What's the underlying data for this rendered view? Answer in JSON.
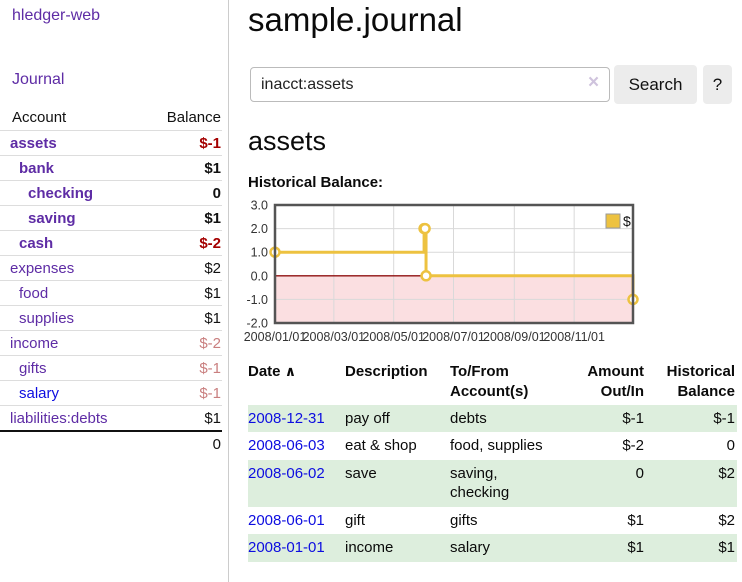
{
  "colors": {
    "purple": "#5e2ca5",
    "blue": "#0d0de0",
    "neg": "#a40000",
    "neg_soft": "#c97f7f",
    "stripe": "#ddeedd",
    "grid": "#d9d9d9",
    "zero_line": "#8f1010",
    "chart_border": "#545454",
    "chart_negative_fill": "#fbdfe1",
    "button_bg": "#ececec"
  },
  "sidebar": {
    "brand": "hledger-web",
    "journal_link": "Journal",
    "accounts_table": {
      "header_account": "Account",
      "header_balance": "Balance",
      "rows": [
        {
          "account": "assets",
          "depth": 0,
          "bold": true,
          "balance": "$-1",
          "balance_class": "neg-strong"
        },
        {
          "account": "bank",
          "depth": 1,
          "bold": true,
          "balance": "$1",
          "balance_class": ""
        },
        {
          "account": "checking",
          "depth": 2,
          "bold": true,
          "balance": "0",
          "balance_class": ""
        },
        {
          "account": "saving",
          "depth": 2,
          "bold": true,
          "balance": "$1",
          "balance_class": ""
        },
        {
          "account": "cash",
          "depth": 1,
          "bold": true,
          "balance": "$-2",
          "balance_class": "neg-strong"
        },
        {
          "account": "expenses",
          "depth": 0,
          "bold": false,
          "balance": "$2",
          "balance_class": ""
        },
        {
          "account": "food",
          "depth": 1,
          "bold": false,
          "balance": "$1",
          "balance_class": ""
        },
        {
          "account": "supplies",
          "depth": 1,
          "bold": false,
          "balance": "$1",
          "balance_class": ""
        },
        {
          "account": "income",
          "depth": 0,
          "bold": false,
          "balance": "$-2",
          "balance_class": "neg-soft"
        },
        {
          "account": "gifts",
          "depth": 1,
          "bold": false,
          "balance": "$-1",
          "balance_class": "neg-soft"
        },
        {
          "account": "salary",
          "depth": 1,
          "bold": false,
          "link_blue": true,
          "balance": "$-1",
          "balance_class": "neg-soft"
        },
        {
          "account": "liabilities:debts",
          "depth": 0,
          "bold": false,
          "balance": "$1",
          "balance_class": ""
        }
      ],
      "total": "0"
    }
  },
  "header": {
    "title": "sample.journal"
  },
  "search": {
    "value": "inacct:assets",
    "clear_icon": "×",
    "button_label": "Search",
    "help_label": "?"
  },
  "account_page": {
    "title": "assets",
    "chart_label": "Historical Balance:"
  },
  "chart_data": {
    "type": "line",
    "subtype": "step",
    "title": "Historical Balance:",
    "xlabel": "",
    "ylabel": "",
    "ylim": [
      -2,
      3
    ],
    "y_ticks": [
      3.0,
      2.0,
      1.0,
      0.0,
      -1.0,
      -2.0
    ],
    "x_range_days": [
      0,
      365
    ],
    "x_tick_days": [
      0,
      60,
      121,
      182,
      244,
      305
    ],
    "x_tick_labels": [
      "2008/01/01",
      "2008/03/01",
      "2008/05/01",
      "2008/07/01",
      "2008/09/01",
      "2008/11/01"
    ],
    "grid": true,
    "legend_position": "top-right",
    "negative_region_shaded": true,
    "series": [
      {
        "name": "$",
        "color": "#edc240",
        "points": [
          {
            "date": "2008-01-01",
            "x_day": 0,
            "y": 1
          },
          {
            "date": "2008-06-01",
            "x_day": 152,
            "y": 2
          },
          {
            "date": "2008-06-02",
            "x_day": 153,
            "y": 2
          },
          {
            "date": "2008-06-03",
            "x_day": 154,
            "y": 0
          },
          {
            "date": "2008-12-31",
            "x_day": 365,
            "y": -1
          }
        ]
      }
    ]
  },
  "register_table": {
    "sort_icon": "∧",
    "headers": {
      "date": "Date",
      "description": "Description",
      "accounts": "To/From Account(s)",
      "amount": "Amount Out/In",
      "balance": "Historical Balance"
    },
    "rows": [
      {
        "date": "2008-12-31",
        "description": "pay off",
        "accounts": "debts",
        "amount": "$-1",
        "amount_neg": true,
        "balance": "$-1",
        "balance_neg": true
      },
      {
        "date": "2008-06-03",
        "description": "eat & shop",
        "accounts": "food, supplies",
        "amount": "$-2",
        "amount_neg": true,
        "balance": "0",
        "balance_neg": false
      },
      {
        "date": "2008-06-02",
        "description": "save",
        "accounts": "saving, checking",
        "amount": "0",
        "amount_neg": false,
        "balance": "$2",
        "balance_neg": false
      },
      {
        "date": "2008-06-01",
        "description": "gift",
        "accounts": "gifts",
        "amount": "$1",
        "amount_neg": false,
        "balance": "$2",
        "balance_neg": false
      },
      {
        "date": "2008-01-01",
        "description": "income",
        "accounts": "salary",
        "amount": "$1",
        "amount_neg": false,
        "balance": "$1",
        "balance_neg": false
      }
    ]
  }
}
